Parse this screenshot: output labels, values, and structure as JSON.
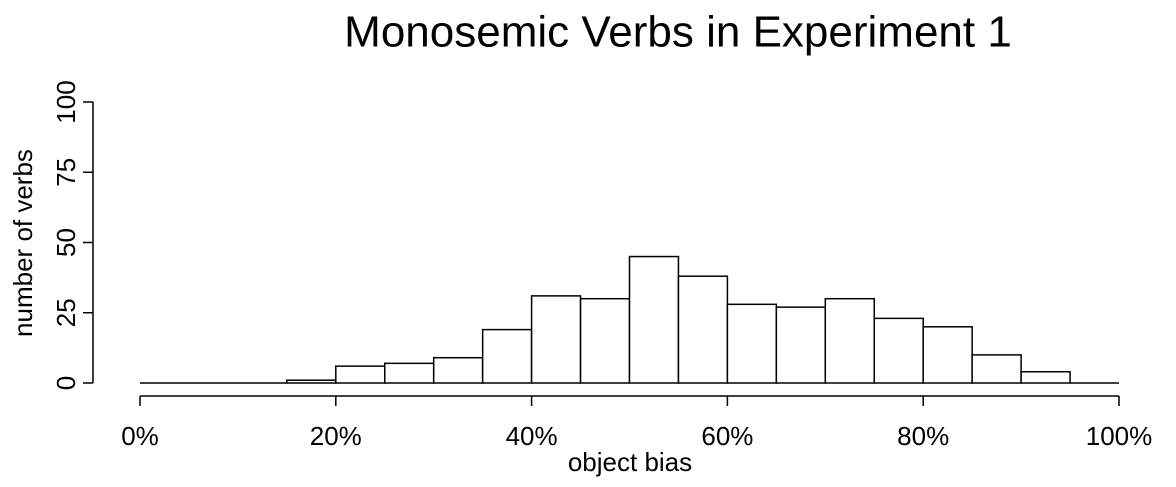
{
  "chart_data": {
    "type": "histogram",
    "title": "Monosemic Verbs in Experiment 1",
    "x_label": "object bias",
    "y_label": "number of verbs",
    "bins": [
      0,
      5,
      10,
      15,
      20,
      25,
      30,
      35,
      40,
      45,
      50,
      55,
      60,
      65,
      70,
      75,
      80,
      85,
      90,
      95,
      100
    ],
    "values": [
      0,
      0,
      0,
      1,
      6,
      7,
      9,
      19,
      31,
      30,
      45,
      38,
      28,
      27,
      30,
      23,
      20,
      10,
      4,
      0
    ],
    "color": "#ffffff",
    "xlim": [
      0,
      100
    ],
    "xticks": [
      {
        "value": 0,
        "label": "0%"
      },
      {
        "value": 20,
        "label": "20%"
      },
      {
        "value": 40,
        "label": "40%"
      },
      {
        "value": 60,
        "label": "60%"
      },
      {
        "value": 80,
        "label": "80%"
      },
      {
        "value": 100,
        "label": "100%"
      }
    ],
    "ylim": [
      0,
      100
    ],
    "yticks": [
      0,
      25,
      50,
      75,
      100
    ],
    "grid": false
  }
}
